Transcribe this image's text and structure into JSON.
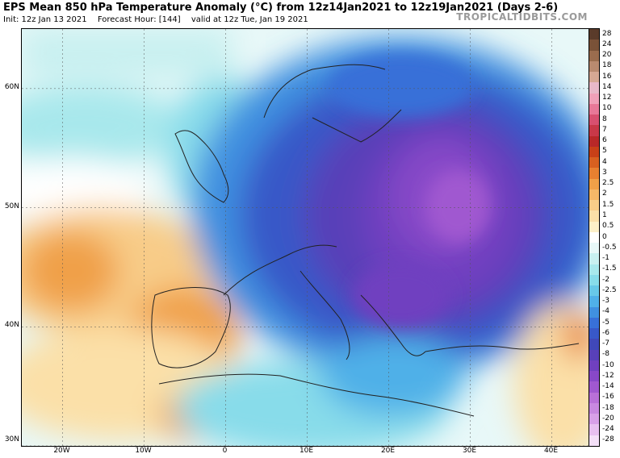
{
  "header": {
    "title": "EPS Mean 850 hPa Temperature Anomaly (°C) from 12z14Jan2021 to 12z19Jan2021 (Days 2-6)",
    "init": "Init: 12z Jan 13 2021",
    "forecast_hour": "Forecast Hour: [144]",
    "valid": "valid at 12z Tue, Jan 19 2021",
    "brand": "TROPICALTIDBITS.COM"
  },
  "axes": {
    "lat_labels": [
      "60N",
      "50N",
      "40N",
      "30N"
    ],
    "lat_values": [
      60,
      50,
      40,
      30
    ],
    "lon_labels": [
      "20W",
      "10W",
      "0",
      "10E",
      "20E",
      "30E",
      "40E"
    ],
    "lon_values": [
      -20,
      -10,
      0,
      10,
      20,
      30,
      40
    ],
    "lon_range": [
      -25,
      44.5
    ],
    "lat_range": [
      30,
      65
    ]
  },
  "colorbar": {
    "labels": [
      "28",
      "24",
      "20",
      "18",
      "16",
      "14",
      "12",
      "10",
      "8",
      "7",
      "6",
      "5",
      "4",
      "3",
      "2.5",
      "2",
      "1.5",
      "1",
      "0.5",
      "0",
      "-0.5",
      "-1",
      "-1.5",
      "-2",
      "-2.5",
      "-3",
      "-4",
      "-5",
      "-6",
      "-7",
      "-8",
      "-10",
      "-12",
      "-14",
      "-16",
      "-18",
      "-20",
      "-24",
      "-28"
    ],
    "colors": [
      "#5a3b2a",
      "#7a5238",
      "#9a6c4e",
      "#b98a6f",
      "#d6a893",
      "#e8b8c8",
      "#f0a0b8",
      "#e87898",
      "#d85070",
      "#c83848",
      "#b82828",
      "#c84018",
      "#d86020",
      "#e88030",
      "#f0a048",
      "#f5b868",
      "#f8cc88",
      "#fbe0a8",
      "#fdf0c8",
      "#ffffff",
      "#e8f8f8",
      "#c8f0f0",
      "#a8e8ec",
      "#88dcea",
      "#68c8e8",
      "#50b0e8",
      "#4090e0",
      "#3870d8",
      "#3858c8",
      "#4048b8",
      "#5840b8",
      "#7040c0",
      "#8848c8",
      "#a058d0",
      "#b870d8",
      "#c888e0",
      "#d8a0e8",
      "#e8c0f0",
      "#f4e0f8"
    ]
  },
  "map": {
    "description_colors": {
      "cold_core": "#8848c8",
      "cold": "#3858c8",
      "cool": "#68c8e8",
      "neutral": "#fdf0c8",
      "warm": "#f0a048"
    }
  }
}
